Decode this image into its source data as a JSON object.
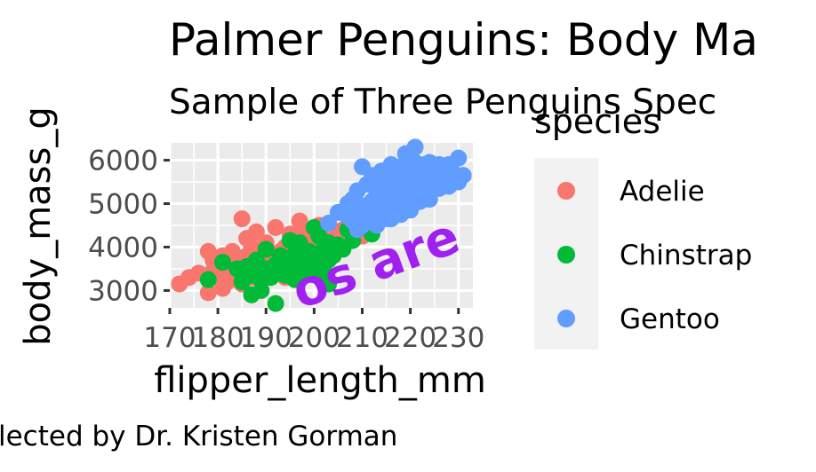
{
  "chart_data": {
    "type": "scatter",
    "title": "Palmer Penguins: Body Ma",
    "subtitle": "Sample of Three Penguins Spec",
    "xlabel": "flipper_length_mm",
    "ylabel": "body_mass_g",
    "caption": "lected by Dr. Kristen Gorman",
    "annotation": {
      "text": "os are",
      "x": 214,
      "y": 3250,
      "angle": -20
    },
    "xlim": [
      170,
      233
    ],
    "ylim": [
      2600,
      6400
    ],
    "x_ticks": [
      170,
      180,
      190,
      200,
      210,
      220,
      230
    ],
    "x_tick_labels": [
      "170",
      "180",
      "190",
      "200",
      "210",
      "220",
      "230"
    ],
    "y_ticks": [
      3000,
      4000,
      5000,
      6000
    ],
    "y_tick_labels": [
      "3000",
      "4000",
      "5000",
      "6000"
    ],
    "grid": true,
    "panel_background": "#ebebeb",
    "legend": {
      "title": "species",
      "position": "right"
    },
    "series": [
      {
        "name": "Adelie",
        "color": "#F8766D",
        "points": [
          [
            172,
            3150
          ],
          [
            174,
            3300
          ],
          [
            176,
            3400
          ],
          [
            178,
            2950
          ],
          [
            178,
            3900
          ],
          [
            179,
            3700
          ],
          [
            180,
            3350
          ],
          [
            180,
            3600
          ],
          [
            181,
            3800
          ],
          [
            181,
            3050
          ],
          [
            182,
            3450
          ],
          [
            182,
            3200
          ],
          [
            183,
            3900
          ],
          [
            184,
            3650
          ],
          [
            184,
            3350
          ],
          [
            185,
            3700
          ],
          [
            185,
            3150
          ],
          [
            185,
            4650
          ],
          [
            186,
            3450
          ],
          [
            186,
            3800
          ],
          [
            187,
            3300
          ],
          [
            187,
            4000
          ],
          [
            187,
            3600
          ],
          [
            188,
            3950
          ],
          [
            188,
            3500
          ],
          [
            189,
            3750
          ],
          [
            189,
            3250
          ],
          [
            190,
            4100
          ],
          [
            190,
            3550
          ],
          [
            190,
            3850
          ],
          [
            191,
            3400
          ],
          [
            191,
            3700
          ],
          [
            192,
            4450
          ],
          [
            192,
            3650
          ],
          [
            193,
            3450
          ],
          [
            193,
            3900
          ],
          [
            194,
            3750
          ],
          [
            194,
            4000
          ],
          [
            195,
            3550
          ],
          [
            195,
            4300
          ],
          [
            196,
            3800
          ],
          [
            196,
            4150
          ],
          [
            197,
            3600
          ],
          [
            197,
            3950
          ],
          [
            198,
            4400
          ],
          [
            198,
            3700
          ],
          [
            199,
            4050
          ],
          [
            199,
            3850
          ],
          [
            200,
            3950
          ],
          [
            200,
            4250
          ],
          [
            201,
            3900
          ],
          [
            201,
            4500
          ],
          [
            202,
            4200
          ],
          [
            203,
            3950
          ],
          [
            205,
            4350
          ],
          [
            206,
            4400
          ],
          [
            208,
            4300
          ],
          [
            210,
            4250
          ],
          [
            212,
            4500
          ],
          [
            188,
            4350
          ],
          [
            183,
            3550
          ],
          [
            186,
            4200
          ],
          [
            194,
            3300
          ],
          [
            197,
            4600
          ],
          [
            179,
            3450
          ]
        ]
      },
      {
        "name": "Chinstrap",
        "color": "#00BA38",
        "points": [
          [
            178,
            3250
          ],
          [
            181,
            3650
          ],
          [
            184,
            3500
          ],
          [
            185,
            3200
          ],
          [
            187,
            2900
          ],
          [
            187,
            3350
          ],
          [
            188,
            3700
          ],
          [
            189,
            3250
          ],
          [
            190,
            3500
          ],
          [
            190,
            3950
          ],
          [
            191,
            3300
          ],
          [
            192,
            2700
          ],
          [
            192,
            3600
          ],
          [
            193,
            3400
          ],
          [
            193,
            3800
          ],
          [
            194,
            3350
          ],
          [
            195,
            3700
          ],
          [
            195,
            3500
          ],
          [
            196,
            3850
          ],
          [
            196,
            3250
          ],
          [
            197,
            3600
          ],
          [
            197,
            4100
          ],
          [
            198,
            3400
          ],
          [
            198,
            3750
          ],
          [
            199,
            3900
          ],
          [
            199,
            3550
          ],
          [
            200,
            3800
          ],
          [
            200,
            3500
          ],
          [
            201,
            3650
          ],
          [
            201,
            4250
          ],
          [
            202,
            3450
          ],
          [
            202,
            3950
          ],
          [
            203,
            3700
          ],
          [
            203,
            4100
          ],
          [
            204,
            3800
          ],
          [
            205,
            4050
          ],
          [
            206,
            3950
          ],
          [
            207,
            4400
          ],
          [
            208,
            4150
          ],
          [
            210,
            4500
          ],
          [
            210,
            4800
          ],
          [
            212,
            4300
          ],
          [
            195,
            4150
          ],
          [
            203,
            3150
          ],
          [
            197,
            3300
          ],
          [
            189,
            3000
          ],
          [
            186,
            3550
          ],
          [
            200,
            4450
          ]
        ]
      },
      {
        "name": "Gentoo",
        "color": "#619CFF",
        "points": [
          [
            203,
            4550
          ],
          [
            207,
            4700
          ],
          [
            208,
            5100
          ],
          [
            208,
            4600
          ],
          [
            209,
            4800
          ],
          [
            209,
            5300
          ],
          [
            210,
            4500
          ],
          [
            210,
            4950
          ],
          [
            211,
            5450
          ],
          [
            211,
            4750
          ],
          [
            212,
            4850
          ],
          [
            212,
            5050
          ],
          [
            213,
            4600
          ],
          [
            213,
            5200
          ],
          [
            213,
            4900
          ],
          [
            214,
            5350
          ],
          [
            214,
            4700
          ],
          [
            214,
            5050
          ],
          [
            215,
            5000
          ],
          [
            215,
            5500
          ],
          [
            215,
            4800
          ],
          [
            216,
            5200
          ],
          [
            216,
            4650
          ],
          [
            216,
            5400
          ],
          [
            217,
            4950
          ],
          [
            217,
            5300
          ],
          [
            217,
            5600
          ],
          [
            218,
            5100
          ],
          [
            218,
            4750
          ],
          [
            218,
            5450
          ],
          [
            219,
            5000
          ],
          [
            219,
            5300
          ],
          [
            219,
            5700
          ],
          [
            220,
            4850
          ],
          [
            220,
            5200
          ],
          [
            220,
            5550
          ],
          [
            221,
            5950
          ],
          [
            221,
            5050
          ],
          [
            221,
            5400
          ],
          [
            222,
            5300
          ],
          [
            222,
            5750
          ],
          [
            223,
            5200
          ],
          [
            223,
            5500
          ],
          [
            224,
            5650
          ],
          [
            224,
            5100
          ],
          [
            225,
            5450
          ],
          [
            225,
            5800
          ],
          [
            226,
            5350
          ],
          [
            226,
            5600
          ],
          [
            227,
            5550
          ],
          [
            228,
            5400
          ],
          [
            229,
            5700
          ],
          [
            230,
            6050
          ],
          [
            230,
            5500
          ],
          [
            231,
            5650
          ],
          [
            221,
            6300
          ],
          [
            219,
            6150
          ],
          [
            216,
            5900
          ],
          [
            214,
            5750
          ],
          [
            212,
            5650
          ],
          [
            210,
            5850
          ],
          [
            217,
            5050
          ],
          [
            222,
            5050
          ],
          [
            224,
            5950
          ],
          [
            226,
            5900
          ],
          [
            209,
            4400
          ],
          [
            213,
            4500
          ],
          [
            215,
            4650
          ],
          [
            218,
            5850
          ],
          [
            220,
            6000
          ],
          [
            205,
            4800
          ],
          [
            207,
            5000
          ],
          [
            211,
            4600
          ],
          [
            223,
            5900
          ],
          [
            228,
            5900
          ]
        ]
      }
    ]
  }
}
